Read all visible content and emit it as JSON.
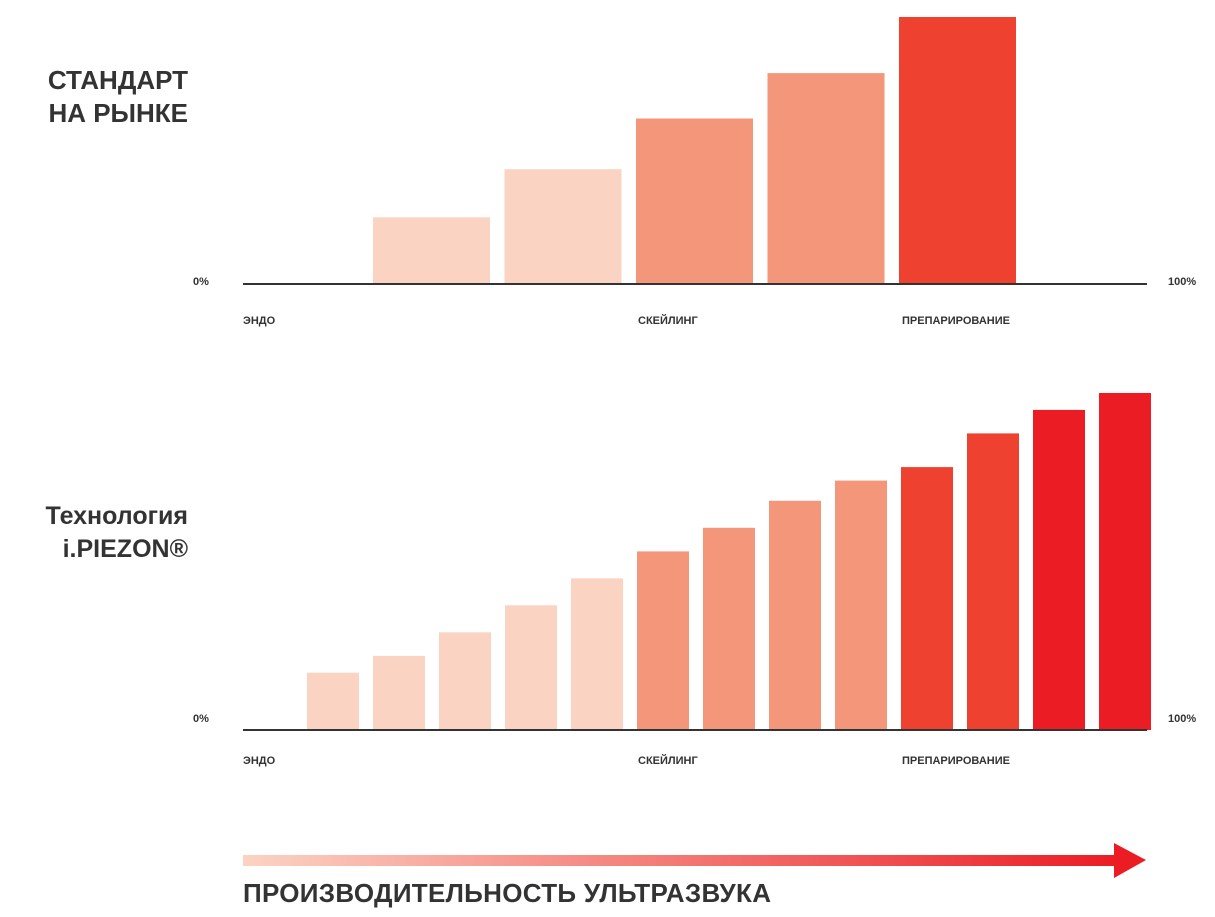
{
  "chart_data": [
    {
      "type": "bar",
      "title_lines": [
        "СТАНДАРТ",
        "НА РЫНКЕ"
      ],
      "x_start_label": "0%",
      "x_end_label": "100%",
      "tick_labels": [
        "ЭНДО",
        "СКЕЙЛИНГ",
        "ПРЕПАРИРОВАНИЕ"
      ],
      "series": [
        {
          "values": [
            25,
            43,
            62,
            79,
            100
          ]
        }
      ],
      "bar_group_index": [
        0,
        0,
        1,
        1,
        2
      ],
      "ylim": [
        0,
        100
      ],
      "grid": false
    },
    {
      "type": "bar",
      "title_lines": [
        "Технология",
        "i.PIEZON®"
      ],
      "x_start_label": "0%",
      "x_end_label": "100%",
      "tick_labels": [
        "ЭНДО",
        "СКЕЙЛИНГ",
        "ПРЕПАРИРОВАНИЕ"
      ],
      "series": [
        {
          "values": [
            17,
            22,
            29,
            37,
            45,
            53,
            60,
            68,
            74,
            78,
            88,
            95,
            100
          ]
        }
      ],
      "bar_group_index": [
        0,
        0,
        0,
        0,
        0,
        1,
        1,
        1,
        1,
        2,
        2,
        3,
        3
      ],
      "ylim": [
        0,
        100
      ],
      "grid": false
    }
  ],
  "group_colors": [
    "#FBD3C3",
    "#F4967A",
    "#EE4130",
    "#EB1C24"
  ],
  "arrow": {
    "gradient_from": "#FBD3C3",
    "gradient_to": "#EB1C24",
    "label": "ПРОИЗВОДИТЕЛЬНОСТЬ УЛЬТРАЗВУКА"
  },
  "axis_color": "#333333"
}
